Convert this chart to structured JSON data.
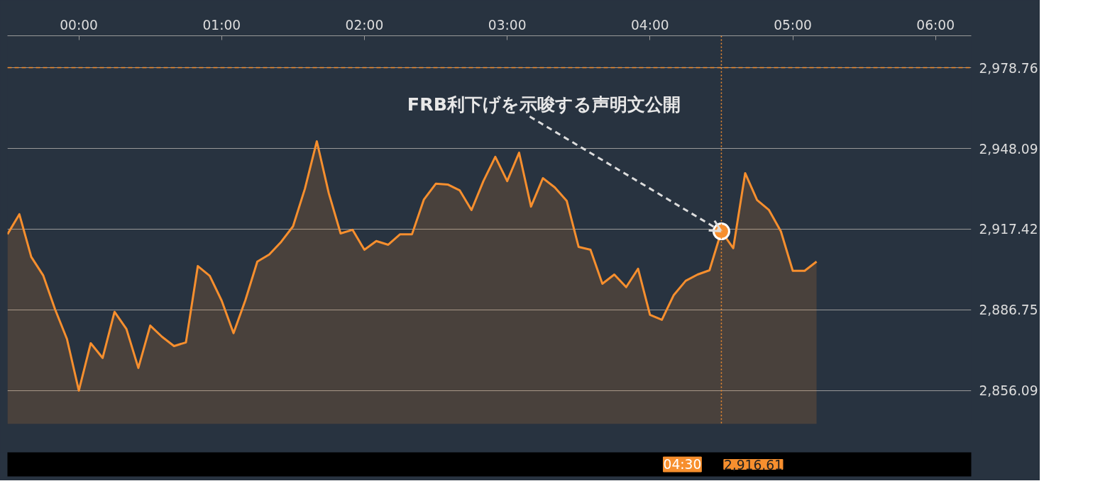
{
  "chart_data": {
    "type": "area",
    "series": [
      {
        "color": "#f78f2e",
        "x": [
          -0.5,
          -0.4167,
          -0.3333,
          -0.25,
          -0.1667,
          -0.0833,
          0,
          0.0833,
          0.1667,
          0.25,
          0.3333,
          0.4167,
          0.5,
          0.5833,
          0.6667,
          0.75,
          0.8333,
          0.9167,
          1,
          1.0833,
          1.1667,
          1.25,
          1.3333,
          1.4167,
          1.5,
          1.5833,
          1.6667,
          1.75,
          1.8333,
          1.9167,
          2,
          2.0833,
          2.1667,
          2.25,
          2.3333,
          2.4167,
          2.5,
          2.5833,
          2.6667,
          2.75,
          2.8333,
          2.9167,
          3,
          3.0833,
          3.1667,
          3.25,
          3.3333,
          3.4167,
          3.5,
          3.5833,
          3.6667,
          3.75,
          3.8333,
          3.9167,
          4,
          4.0833,
          4.1667,
          4.25,
          4.3333,
          4.4167,
          4.5,
          4.5833,
          4.6667,
          4.75,
          4.8333,
          4.9167,
          5,
          5.0833,
          5.1667
        ],
        "values": [
          2915.5,
          2923.1,
          2906.9,
          2899.9,
          2887.0,
          2875.7,
          2856.1,
          2874.1,
          2868.5,
          2886.0,
          2879.5,
          2864.7,
          2880.8,
          2876.5,
          2873.0,
          2874.4,
          2903.4,
          2899.7,
          2890.3,
          2877.9,
          2890.5,
          2905.1,
          2907.8,
          2912.6,
          2918.5,
          2932.8,
          2950.8,
          2931.2,
          2915.8,
          2917.2,
          2909.6,
          2912.9,
          2911.5,
          2915.5,
          2915.5,
          2928.7,
          2934.7,
          2934.4,
          2932.2,
          2924.7,
          2935.7,
          2944.9,
          2935.7,
          2946.5,
          2926.0,
          2936.8,
          2933.3,
          2928.2,
          2910.7,
          2909.6,
          2896.7,
          2900.2,
          2895.4,
          2902.4,
          2884.9,
          2883.0,
          2892.4,
          2897.8,
          2900.2,
          2901.8,
          2916.6,
          2910.2,
          2938.7,
          2928.5,
          2924.7,
          2916.6,
          2901.6,
          2901.6,
          2905.1
        ]
      },
      {
        "type": "scatter",
        "color": "#f78f2e",
        "marker": "circle",
        "x": [
          4.5
        ],
        "values": [
          2916.6
        ]
      }
    ],
    "xlim": [
      -0.5,
      6.25
    ],
    "xticks": [
      {
        "value": 0,
        "label": "00:00"
      },
      {
        "value": 1,
        "label": "01:00"
      },
      {
        "value": 2,
        "label": "02:00"
      },
      {
        "value": 3,
        "label": "03:00"
      },
      {
        "value": 4,
        "label": "04:00"
      },
      {
        "value": 5,
        "label": "05:00"
      },
      {
        "value": 6,
        "label": "06:00"
      }
    ],
    "ylim": [
      2843.4,
      2990.9
    ],
    "yticks": [
      {
        "value": 2856.09,
        "label": "2,856.09"
      },
      {
        "value": 2886.75,
        "label": "2,886.75"
      },
      {
        "value": 2917.42,
        "label": "2,917.42"
      },
      {
        "value": 2948.09,
        "label": "2,948.09"
      },
      {
        "value": 2978.76,
        "label": "2,978.76"
      }
    ],
    "grid": "y",
    "ref_lines": [
      {
        "axis": "y",
        "value": 2978.76,
        "color": "#f78f2e",
        "line_style": "dashed"
      },
      {
        "axis": "x",
        "value": 4.5,
        "color": "#f78f2e",
        "line_style": "dotted"
      }
    ],
    "annotations": [
      {
        "text": "FRB利下げを示唆する声明文公開",
        "x": 4.5,
        "y": 2916.6
      },
      "04:30",
      "2,916.61"
    ]
  }
}
